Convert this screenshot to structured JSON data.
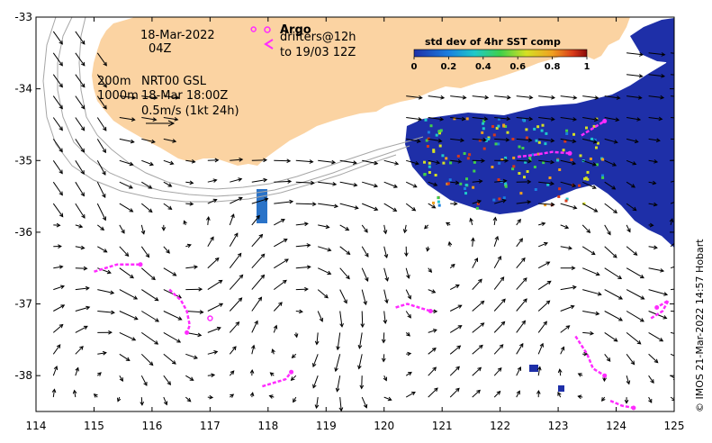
{
  "map": {
    "date_line1": "18-Mar-2022",
    "date_line2": "04Z",
    "contour_label_200": "200m",
    "contour_label_1000": "1000m",
    "product": "NRT00 GSL",
    "product_time": "18-Mar 18:00Z",
    "scale_label": "0.5m/s (1kt 24h)",
    "argo_label": "Argo",
    "drifters_label": "drifters@12h",
    "drifters_to": "to 19/03 12Z",
    "credit": "© IMOS 21-Mar-2022 14:57 Hobart"
  },
  "colorbar": {
    "title": "std dev of 4hr SST comp",
    "ticks": [
      "0",
      "0.2",
      "0.4",
      "0.6",
      "0.8",
      "1"
    ]
  },
  "axes": {
    "x_ticks": [
      "114",
      "115",
      "116",
      "117",
      "118",
      "119",
      "120",
      "121",
      "122",
      "123",
      "124",
      "125"
    ],
    "y_ticks": [
      "-33",
      "-34",
      "-35",
      "-36",
      "-37",
      "-38"
    ],
    "xlim": [
      114,
      125
    ],
    "ylim": [
      -38.5,
      -33
    ]
  },
  "colors": {
    "land": "#fbd3a2",
    "sst_low": "#1e2fa8",
    "drifter": "#ff2bff",
    "contour": "#a6a6a6"
  },
  "drifters": [
    {
      "track": [
        [
          115.0,
          -36.55
        ],
        [
          115.2,
          -36.5
        ],
        [
          115.4,
          -36.45
        ],
        [
          115.6,
          -36.45
        ],
        [
          115.8,
          -36.45
        ]
      ]
    },
    {
      "track": [
        [
          116.3,
          -36.8
        ],
        [
          116.5,
          -36.95
        ],
        [
          116.6,
          -37.1
        ],
        [
          116.65,
          -37.3
        ],
        [
          116.6,
          -37.4
        ]
      ]
    },
    {
      "track": [
        [
          117.9,
          -38.15
        ],
        [
          118.1,
          -38.1
        ],
        [
          118.3,
          -38.05
        ],
        [
          118.4,
          -37.95
        ]
      ]
    },
    {
      "track": [
        [
          120.2,
          -37.05
        ],
        [
          120.4,
          -37.0
        ],
        [
          120.6,
          -37.05
        ],
        [
          120.8,
          -37.1
        ]
      ]
    },
    {
      "track": [
        [
          123.3,
          -37.45
        ],
        [
          123.5,
          -37.7
        ],
        [
          123.6,
          -37.9
        ],
        [
          123.8,
          -38.0
        ]
      ]
    },
    {
      "track": [
        [
          123.9,
          -38.35
        ],
        [
          124.1,
          -38.42
        ],
        [
          124.3,
          -38.45
        ]
      ]
    },
    {
      "track": [
        [
          124.6,
          -37.2
        ],
        [
          124.8,
          -37.1
        ],
        [
          124.9,
          -36.95
        ],
        [
          124.7,
          -37.05
        ]
      ]
    },
    {
      "track": [
        [
          122.3,
          -34.95
        ],
        [
          122.6,
          -34.92
        ],
        [
          122.9,
          -34.88
        ],
        [
          123.2,
          -34.9
        ]
      ]
    },
    {
      "track": [
        [
          123.4,
          -34.65
        ],
        [
          123.6,
          -34.55
        ],
        [
          123.8,
          -34.45
        ]
      ]
    }
  ],
  "argo_floats": [
    {
      "lon": 117.0,
      "lat": -37.2
    },
    {
      "lon": 117.75,
      "lat": -33.17
    }
  ]
}
